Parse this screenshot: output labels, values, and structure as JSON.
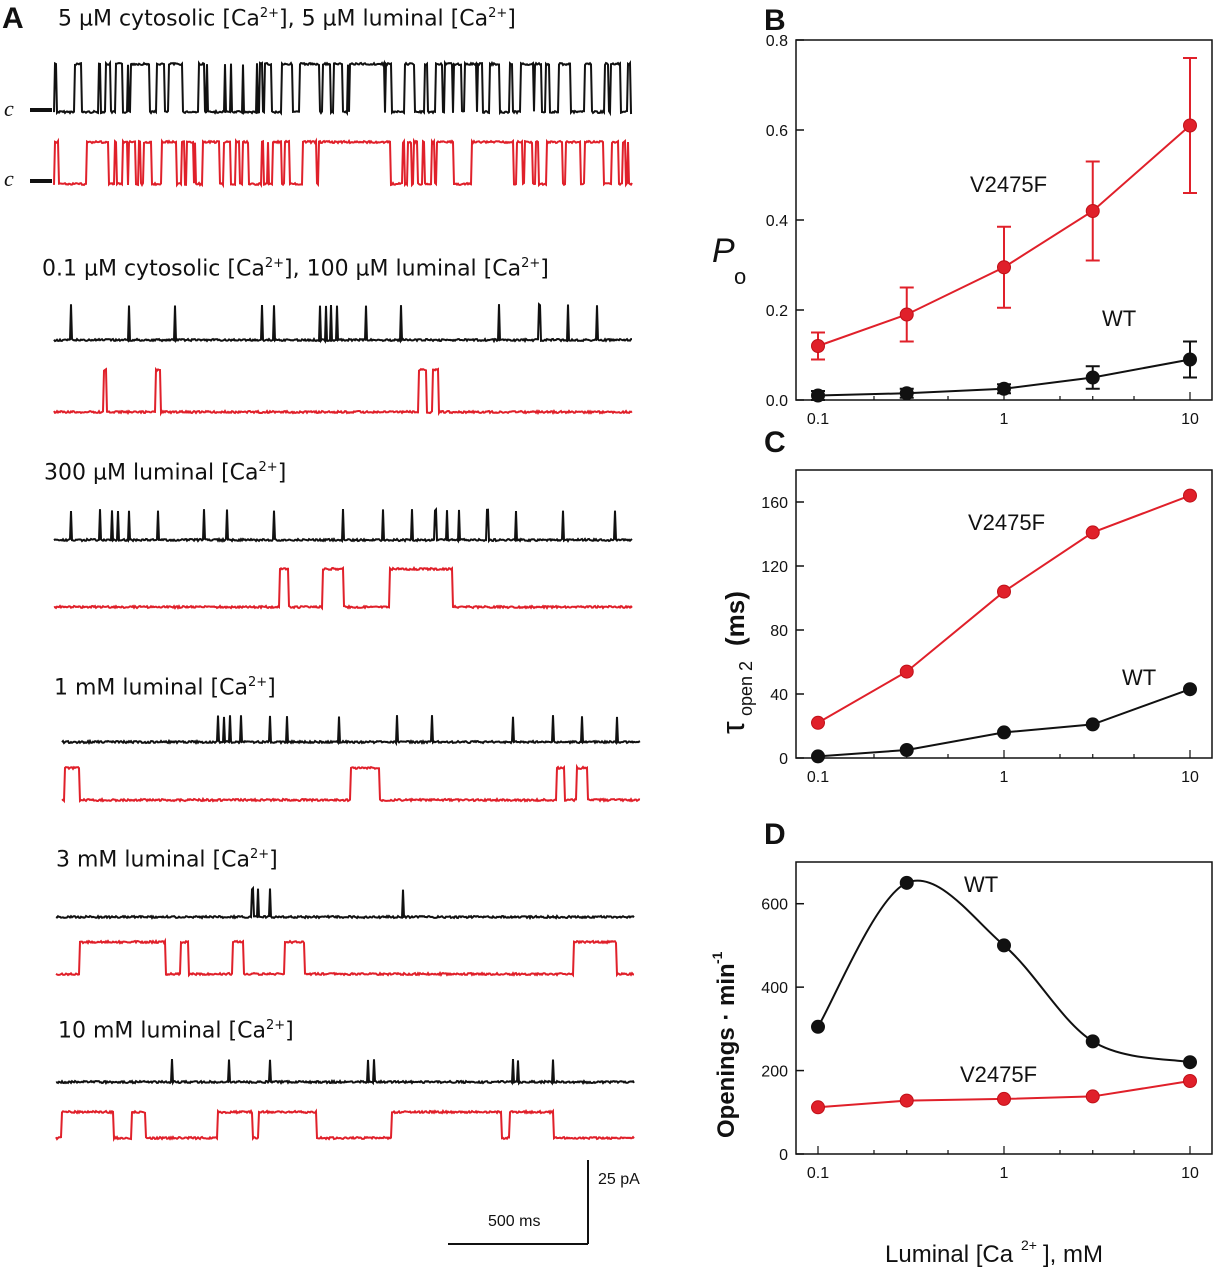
{
  "panel_a": {
    "letter": "A",
    "closed_label": "c",
    "conditions": [
      {
        "pre": "5 µM cytosolic [Ca",
        "mid": "], 5 µM luminal [Ca",
        "post": "]"
      },
      {
        "pre": "0.1 µM cytosolic [Ca",
        "mid": "], 100 µM luminal [Ca",
        "post": "]"
      },
      {
        "pre": "300 µM luminal [Ca",
        "mid": "",
        "post": "]"
      },
      {
        "pre": "1 mM luminal [Ca",
        "mid": "",
        "post": "]"
      },
      {
        "pre": "3 mM luminal [Ca",
        "mid": "",
        "post": "]"
      },
      {
        "pre": "10 mM luminal [Ca",
        "mid": "",
        "post": "]"
      }
    ],
    "sup": "2+",
    "scale_time": "500 ms",
    "scale_current": "25 pA",
    "colors": {
      "wt": "#111111",
      "mutant": "#e0202a"
    }
  },
  "chart_data": [
    {
      "panel": "B",
      "type": "line",
      "ylabel": "P",
      "ylabel_sub": "o",
      "x_scale": "log",
      "x": [
        0.1,
        0.3,
        1,
        3,
        10
      ],
      "xticks": [
        "0.1",
        "1",
        "10"
      ],
      "ylim": [
        0,
        0.8
      ],
      "yticks": [
        "0.0",
        "0.2",
        "0.4",
        "0.6",
        "0.8"
      ],
      "series": [
        {
          "name": "V2475F",
          "color": "#e0202a",
          "values": [
            0.12,
            0.19,
            0.295,
            0.42,
            0.61
          ],
          "errors": [
            0.03,
            0.06,
            0.09,
            0.11,
            0.15
          ]
        },
        {
          "name": "WT",
          "color": "#111111",
          "values": [
            0.01,
            0.015,
            0.025,
            0.05,
            0.09
          ],
          "errors": [
            0.01,
            0.01,
            0.01,
            0.025,
            0.04
          ]
        }
      ]
    },
    {
      "panel": "C",
      "type": "line",
      "ylabel": "τ",
      "ylabel_sub": "open 2",
      "ylabel_unit": "(ms)",
      "x_scale": "log",
      "x": [
        0.1,
        0.3,
        1,
        3,
        10
      ],
      "xticks": [
        "0.1",
        "1",
        "10"
      ],
      "ylim": [
        0,
        180
      ],
      "yticks": [
        "0",
        "40",
        "80",
        "120",
        "160"
      ],
      "series": [
        {
          "name": "V2475F",
          "color": "#e0202a",
          "values": [
            22,
            54,
            104,
            141,
            164
          ]
        },
        {
          "name": "WT",
          "color": "#111111",
          "values": [
            1,
            5,
            16,
            21,
            43
          ]
        }
      ]
    },
    {
      "panel": "D",
      "type": "line",
      "ylabel": "Openings · min",
      "ylabel_sup": "-1",
      "xlabel": "Luminal [Ca",
      "xlabel_sup": "2+",
      "xlabel_post": "], mM",
      "x_scale": "log",
      "x": [
        0.1,
        0.3,
        1,
        3,
        10
      ],
      "xticks": [
        "0.1",
        "1",
        "10"
      ],
      "ylim": [
        0,
        700
      ],
      "yticks": [
        "0",
        "200",
        "400",
        "600"
      ],
      "series": [
        {
          "name": "WT",
          "color": "#111111",
          "values": [
            305,
            650,
            500,
            270,
            220
          ]
        },
        {
          "name": "V2475F",
          "color": "#e0202a",
          "values": [
            112,
            128,
            132,
            138,
            175
          ]
        }
      ]
    }
  ]
}
